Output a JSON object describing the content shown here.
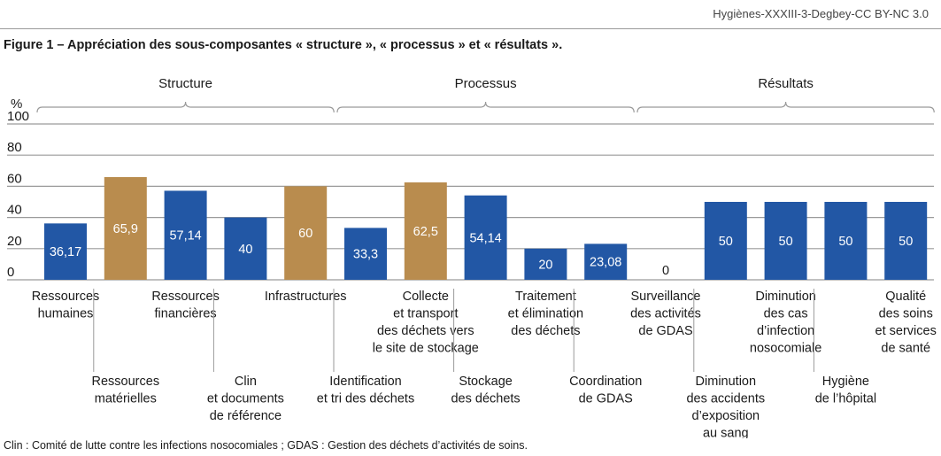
{
  "header": {
    "credit": "Hygiènes-XXXIII-3-Degbey-CC BY-NC 3.0"
  },
  "figure": {
    "title": "Figure 1 – Appréciation des sous-composantes « structure », « processus » et « résultats ».",
    "footnote": "Clin : Comité de lutte contre les infections nosocomiales ; GDAS : Gestion des déchets d’activités de soins."
  },
  "colors": {
    "blue": "#2257a5",
    "tan": "#b98c4e",
    "axis": "#9a9a9a",
    "text": "#1a1a1a"
  },
  "chart_data": {
    "type": "bar",
    "ylabel": "%",
    "ylim": [
      0,
      100
    ],
    "yticks": [
      "0",
      "20",
      "40",
      "60",
      "80",
      "100"
    ],
    "groups": [
      {
        "label": "Structure",
        "from": 0,
        "to": 4
      },
      {
        "label": "Processus",
        "from": 5,
        "to": 9
      },
      {
        "label": "Résultats",
        "from": 10,
        "to": 14
      }
    ],
    "bars": [
      {
        "label": [
          "Ressources",
          "humaines"
        ],
        "value": 36.17,
        "display": "36,17",
        "color": "blue",
        "row": 0
      },
      {
        "label": [
          "Ressources",
          "matérielles"
        ],
        "value": 65.9,
        "display": "65,9",
        "color": "tan",
        "row": 1
      },
      {
        "label": [
          "Ressources",
          "financières"
        ],
        "value": 57.14,
        "display": "57,14",
        "color": "blue",
        "row": 0
      },
      {
        "label": [
          "Clin",
          "et documents",
          "de référence"
        ],
        "value": 40,
        "display": "40",
        "color": "blue",
        "row": 1
      },
      {
        "label": [
          "Infrastructures"
        ],
        "value": 60,
        "display": "60",
        "color": "tan",
        "row": 0
      },
      {
        "label": [
          "Identification",
          "et tri des déchets"
        ],
        "value": 33.3,
        "display": "33,3",
        "color": "blue",
        "row": 1
      },
      {
        "label": [
          "Collecte",
          "et transport",
          "des déchets vers",
          "le site de stockage"
        ],
        "value": 62.5,
        "display": "62,5",
        "color": "tan",
        "row": 0
      },
      {
        "label": [
          "Stockage",
          "des déchets"
        ],
        "value": 54.14,
        "display": "54,14",
        "color": "blue",
        "row": 1
      },
      {
        "label": [
          "Traitement",
          "et élimination",
          "des déchets"
        ],
        "value": 20,
        "display": "20",
        "color": "blue",
        "row": 0
      },
      {
        "label": [
          "Coordination",
          "de GDAS"
        ],
        "value": 23.08,
        "display": "23,08",
        "color": "blue",
        "row": 1
      },
      {
        "label": [
          "Surveillance",
          "des activités",
          "de GDAS"
        ],
        "value": 0,
        "display": "0",
        "color": "blue",
        "row": 0
      },
      {
        "label": [
          "Diminution",
          "des accidents",
          "d’exposition",
          "au sang"
        ],
        "value": 50,
        "display": "50",
        "color": "blue",
        "row": 1
      },
      {
        "label": [
          "Diminution",
          "des cas",
          "d’infection",
          "nosocomiale"
        ],
        "value": 50,
        "display": "50",
        "color": "blue",
        "row": 0
      },
      {
        "label": [
          "Hygiène",
          "de l’hôpital"
        ],
        "value": 50,
        "display": "50",
        "color": "blue",
        "row": 1
      },
      {
        "label": [
          "Qualité",
          "des soins",
          "et services",
          "de santé"
        ],
        "value": 50,
        "display": "50",
        "color": "blue",
        "row": 0
      }
    ]
  }
}
